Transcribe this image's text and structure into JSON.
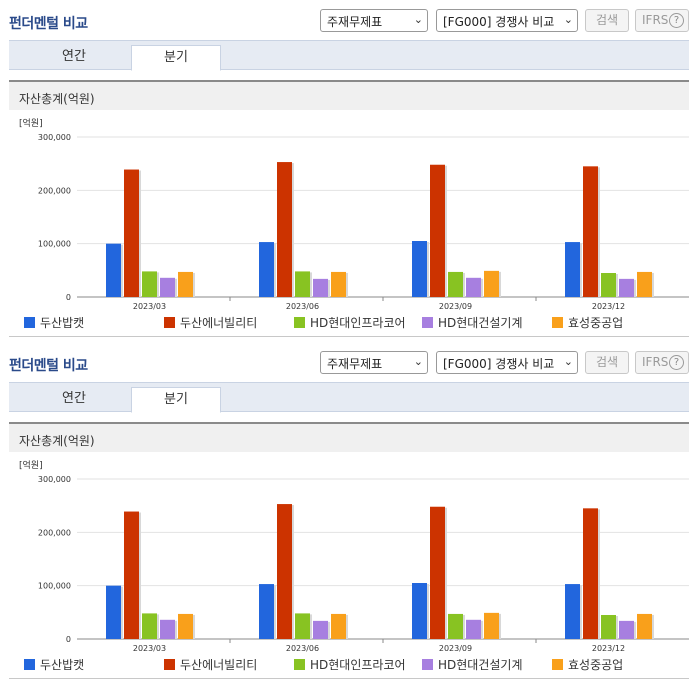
{
  "header": {
    "title": "펀더멘털 비교",
    "statement_select": "주재무제표",
    "compare_select": "[FG000] 경쟁사 비교",
    "search_label": "검색",
    "ifrs_label": "IFRS",
    "help_glyph": "?"
  },
  "tabs": {
    "annual": "연간",
    "quarter": "분기",
    "active": "분기"
  },
  "section": {
    "title": "자산총계(억원)"
  },
  "chart_data": {
    "type": "bar",
    "categories": [
      "2023/03",
      "2023/06",
      "2023/09",
      "2023/12"
    ],
    "ylabel": "[억원]",
    "ylim": [
      0,
      300000
    ],
    "yticks": [
      0,
      100000,
      200000,
      300000
    ],
    "ytick_labels": [
      "0",
      "100,000",
      "200,000",
      "300,000"
    ],
    "grid": true,
    "legend_position": "bottom",
    "series": [
      {
        "name": "두산밥캣",
        "color": "#2266dd",
        "values": [
          100000,
          103000,
          105000,
          103000
        ]
      },
      {
        "name": "두산에너빌리티",
        "color": "#cc3300",
        "values": [
          239000,
          253000,
          248000,
          245000
        ]
      },
      {
        "name": "HD현대인프라코어",
        "color": "#88c322",
        "values": [
          48000,
          48000,
          47000,
          45000
        ]
      },
      {
        "name": "HD현대건설기계",
        "color": "#a77fe0",
        "values": [
          36000,
          34000,
          36000,
          34000
        ]
      },
      {
        "name": "효성중공업",
        "color": "#f9a01b",
        "values": [
          47000,
          47000,
          49000,
          47000
        ]
      }
    ]
  }
}
